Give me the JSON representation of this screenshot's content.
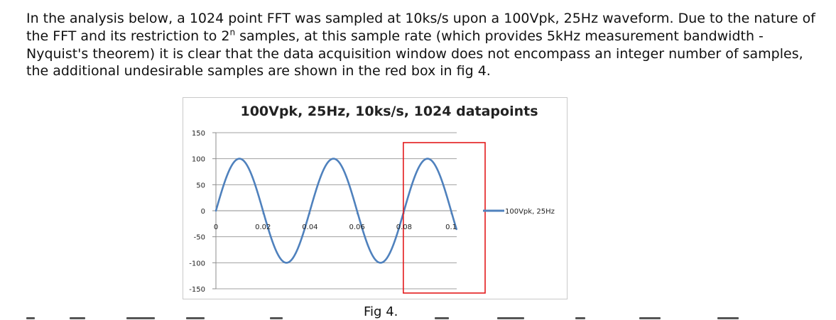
{
  "document": {
    "paragraph": {
      "before": "In the analysis below, a 1024 point FFT was sampled at 10ks/s upon a 100Vpk, 25Hz waveform. Due to the nature of the FFT and its restriction to 2",
      "superscript": "n",
      "after": " samples, at this sample rate (which provides 5kHz measurement bandwidth - Nyquist's theorem) it is clear that the data acquisition window does not encompass an integer number of samples, the additional undesirable samples are shown in the red box in fig 4."
    },
    "caption": "Fig 4."
  },
  "colors": {
    "series": "#4f81bd",
    "highlight_box": "#e31a1c",
    "gridline": "#a0a0a0",
    "axis_text": "#222222"
  },
  "chart_data": {
    "type": "line",
    "title": "100Vpk, 25Hz, 10ks/s, 1024 datapoints",
    "xlabel": "",
    "ylabel": "",
    "xlim": [
      0,
      0.1024
    ],
    "ylim": [
      -150,
      150
    ],
    "x_ticks": [
      "0",
      "0.02",
      "0.04",
      "0.06",
      "0.08",
      "0.1"
    ],
    "x_tick_values": [
      0,
      0.02,
      0.04,
      0.06,
      0.08,
      0.1
    ],
    "y_ticks": [
      "150",
      "100",
      "50",
      "0",
      "-50",
      "-100",
      "-150"
    ],
    "y_tick_values": [
      150,
      100,
      50,
      0,
      -50,
      -100,
      -150
    ],
    "grid": true,
    "legend_position": "right",
    "series": [
      {
        "name": "100Vpk, 25Hz",
        "function": "sine",
        "amplitude": 100,
        "frequency_hz": 25,
        "sample_rate_sps": 10000,
        "num_points": 1024,
        "x_start": 0,
        "x_end": 0.1023
      }
    ],
    "highlight_region": {
      "x_from": 0.08,
      "x_to": 0.1024,
      "y_from": 150,
      "y_to": -150,
      "note": "additional undesirable samples"
    }
  }
}
